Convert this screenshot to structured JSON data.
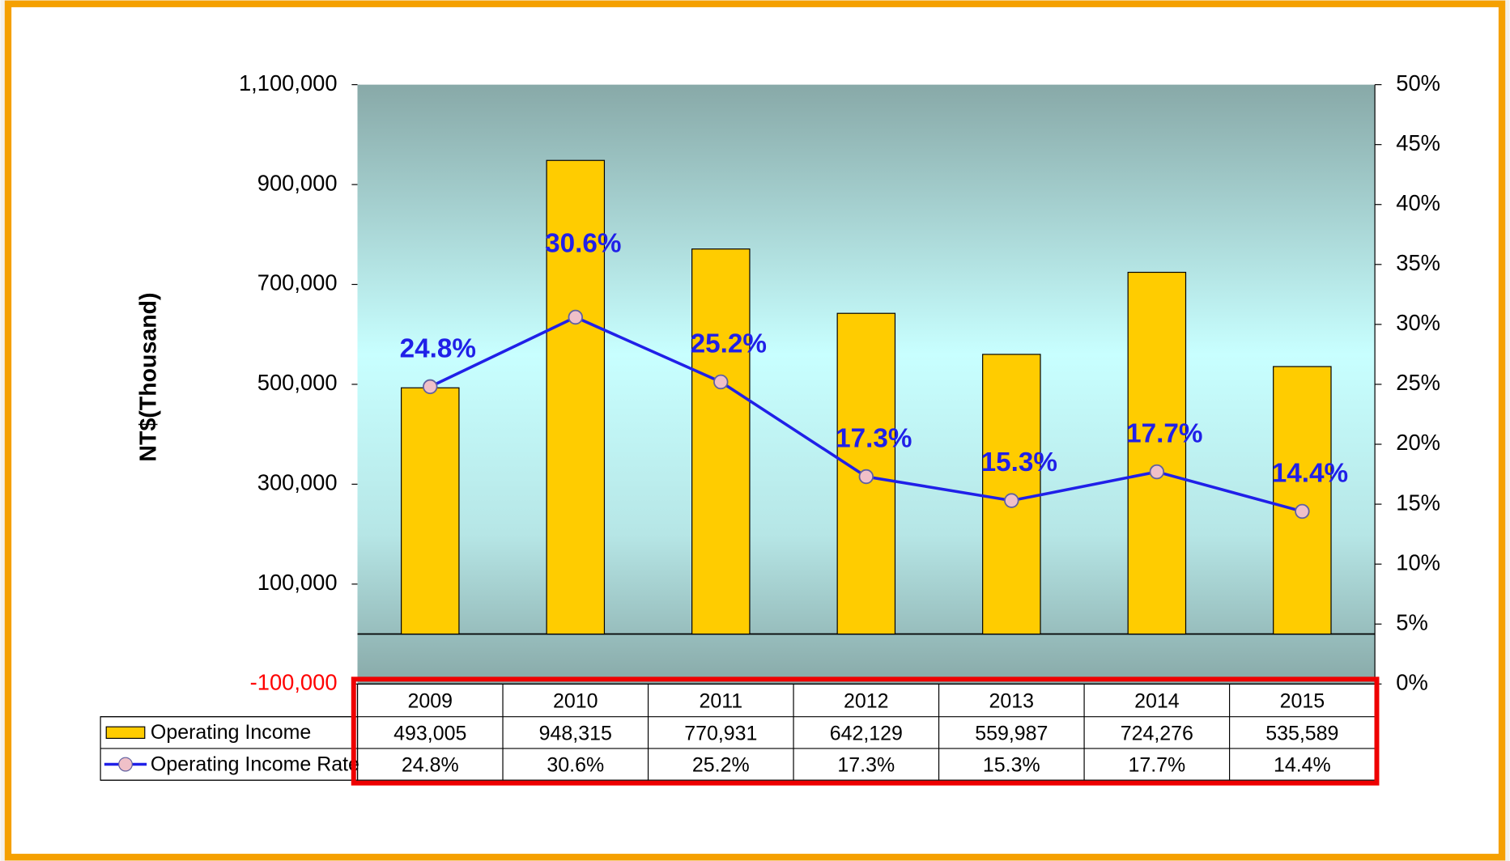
{
  "chart_data": {
    "type": "bar",
    "y_axis_label": "NT$(Thousand)",
    "categories": [
      "2009",
      "2010",
      "2011",
      "2012",
      "2013",
      "2014",
      "2015"
    ],
    "series": [
      {
        "name": "Operating Income",
        "type": "bar",
        "color": "#ffcc00",
        "values": [
          493005,
          948315,
          770931,
          642129,
          559987,
          724276,
          535589
        ],
        "value_labels": [
          "493,005",
          "948,315",
          "770,931",
          "642,129",
          "559,987",
          "724,276",
          "535,589"
        ]
      },
      {
        "name": "Operating Income Rate",
        "type": "line",
        "axis": "y2",
        "color": "#2020e8",
        "values": [
          24.8,
          30.6,
          25.2,
          17.3,
          15.3,
          17.7,
          14.4
        ],
        "value_labels": [
          "24.8%",
          "30.6%",
          "25.2%",
          "17.3%",
          "15.3%",
          "17.7%",
          "14.4%"
        ]
      }
    ],
    "ylim": [
      -100000,
      1100000
    ],
    "yticks": [
      {
        "value": -100000,
        "label": "-100,000"
      },
      {
        "value": 100000,
        "label": "100,000"
      },
      {
        "value": 300000,
        "label": "300,000"
      },
      {
        "value": 500000,
        "label": "500,000"
      },
      {
        "value": 700000,
        "label": "700,000"
      },
      {
        "value": 900000,
        "label": "900,000"
      },
      {
        "value": 1100000,
        "label": "1,100,000"
      }
    ],
    "y2lim": [
      0,
      50
    ],
    "y2ticks": [
      {
        "value": 0,
        "label": "0%"
      },
      {
        "value": 5,
        "label": "5%"
      },
      {
        "value": 10,
        "label": "10%"
      },
      {
        "value": 15,
        "label": "15%"
      },
      {
        "value": 20,
        "label": "20%"
      },
      {
        "value": 25,
        "label": "25%"
      },
      {
        "value": 30,
        "label": "30%"
      },
      {
        "value": 35,
        "label": "35%"
      },
      {
        "value": 40,
        "label": "40%"
      },
      {
        "value": 45,
        "label": "45%"
      },
      {
        "value": 50,
        "label": "50%"
      }
    ]
  }
}
